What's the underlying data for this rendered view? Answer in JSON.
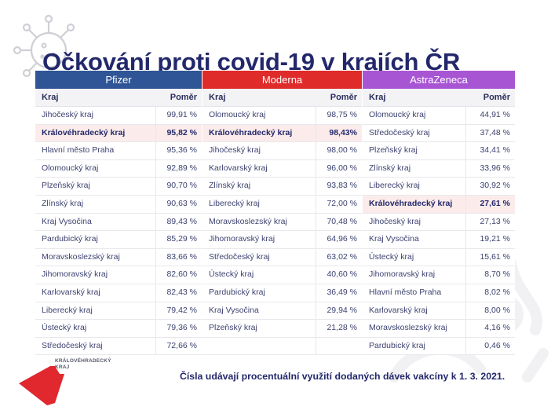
{
  "title": "Očkování proti covid-19 v krajích ČR",
  "colors": {
    "title": "#23286b",
    "pfizer": "#2f5596",
    "moderna": "#e02b2b",
    "astrazeneca": "#a855d4",
    "highlight_row": "#fbeceb",
    "logo_red": "#e0282e"
  },
  "column_headers": {
    "region": "Kraj",
    "ratio": "Poměr"
  },
  "tables": [
    {
      "vaccine": "Pfizer",
      "rows": [
        {
          "region": "Jihočeský kraj",
          "ratio": "99,91 %"
        },
        {
          "region": "Královéhradecký kraj",
          "ratio": "95,82 %",
          "highlight": true
        },
        {
          "region": "Hlavní město Praha",
          "ratio": "95,36 %"
        },
        {
          "region": "Olomoucký kraj",
          "ratio": "92,89 %"
        },
        {
          "region": "Plzeňský kraj",
          "ratio": "90,70 %"
        },
        {
          "region": "Zlínský kraj",
          "ratio": "90,63 %"
        },
        {
          "region": "Kraj Vysočina",
          "ratio": "89,43 %"
        },
        {
          "region": "Pardubický kraj",
          "ratio": "85,29 %"
        },
        {
          "region": "Moravskoslezský kraj",
          "ratio": "83,66 %"
        },
        {
          "region": "Jihomoravský kraj",
          "ratio": "82,60 %"
        },
        {
          "region": "Karlovarský kraj",
          "ratio": "82,43 %"
        },
        {
          "region": "Liberecký kraj",
          "ratio": "79,42 %"
        },
        {
          "region": "Ústecký kraj",
          "ratio": "79,36 %"
        },
        {
          "region": "Středočeský kraj",
          "ratio": "72,66 %"
        }
      ]
    },
    {
      "vaccine": "Moderna",
      "rows": [
        {
          "region": "Olomoucký kraj",
          "ratio": "98,75 %"
        },
        {
          "region": "Královéhradecký kraj",
          "ratio": "98,43%",
          "highlight": true
        },
        {
          "region": "Jihočeský kraj",
          "ratio": "98,00 %"
        },
        {
          "region": "Karlovarský kraj",
          "ratio": "96,00 %"
        },
        {
          "region": "Zlínský kraj",
          "ratio": "93,83 %"
        },
        {
          "region": "Liberecký kraj",
          "ratio": "72,00 %"
        },
        {
          "region": "Moravskoslezský kraj",
          "ratio": "70,48 %"
        },
        {
          "region": "Jihomoravský kraj",
          "ratio": "64,96 %"
        },
        {
          "region": "Středočeský kraj",
          "ratio": "63,02 %"
        },
        {
          "region": "Ústecký kraj",
          "ratio": "40,60 %"
        },
        {
          "region": "Pardubický kraj",
          "ratio": "36,49 %"
        },
        {
          "region": "Kraj Vysočina",
          "ratio": "29,94 %"
        },
        {
          "region": "Plzeňský kraj",
          "ratio": "21,28 %"
        },
        {
          "region": "",
          "ratio": ""
        }
      ]
    },
    {
      "vaccine": "AstraZeneca",
      "rows": [
        {
          "region": "Olomoucký kraj",
          "ratio": "44,91 %"
        },
        {
          "region": "Středočeský kraj",
          "ratio": "37,48 %"
        },
        {
          "region": "Plzeňský kraj",
          "ratio": "34,41 %"
        },
        {
          "region": "Zlínský kraj",
          "ratio": "33,96 %"
        },
        {
          "region": "Liberecký kraj",
          "ratio": "30,92 %"
        },
        {
          "region": "Královéhradecký kraj",
          "ratio": "27,61 %",
          "highlight": true
        },
        {
          "region": "Jihočeský kraj",
          "ratio": "27,13 %"
        },
        {
          "region": "Kraj Vysočina",
          "ratio": "19,21 %"
        },
        {
          "region": "Ústecký kraj",
          "ratio": "15,61 %"
        },
        {
          "region": "Jihomoravský kraj",
          "ratio": "8,70 %"
        },
        {
          "region": "Hlavní město Praha",
          "ratio": "8,02 %"
        },
        {
          "region": "Karlovarský kraj",
          "ratio": "8,00 %"
        },
        {
          "region": "Moravskoslezský kraj",
          "ratio": "4,16 %"
        },
        {
          "region": "Pardubický kraj",
          "ratio": "0,46 %"
        }
      ]
    }
  ],
  "logo": {
    "line1": "KRÁLOVÉHRADECKÝ",
    "line2": "KRAJ"
  },
  "footnote": "Čísla udávají procentuální využití dodaných dávek vakcíny k 1. 3. 2021."
}
